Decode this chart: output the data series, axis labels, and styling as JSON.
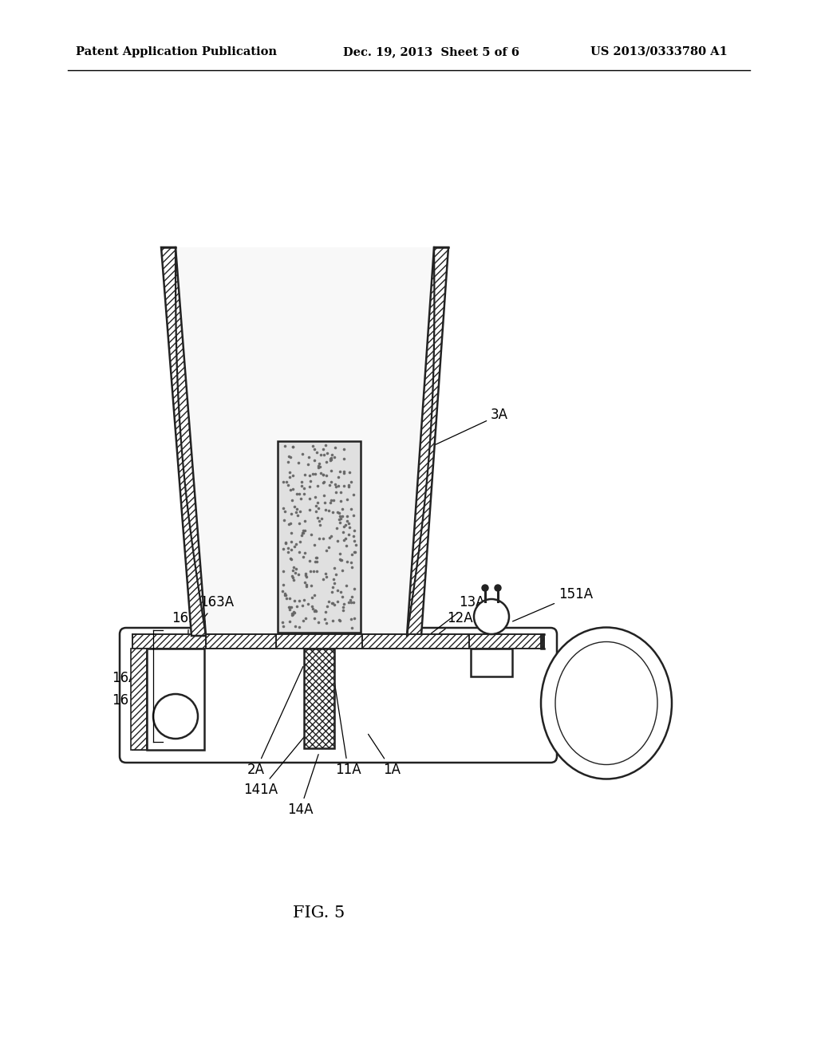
{
  "bg_color": "#ffffff",
  "line_color": "#222222",
  "header_left": "Patent Application Publication",
  "header_mid": "Dec. 19, 2013  Sheet 5 of 6",
  "header_right": "US 2013/0333780 A1",
  "fig_label": "FIG. 5"
}
